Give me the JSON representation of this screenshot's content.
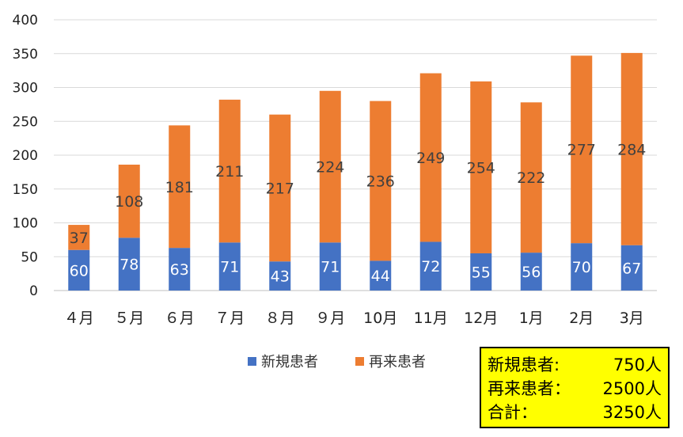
{
  "chart_data": {
    "type": "bar",
    "stacked": true,
    "categories": [
      "４月",
      "５月",
      "６月",
      "７月",
      "８月",
      "９月",
      "10月",
      "11月",
      "12月",
      "1月",
      "2月",
      "3月"
    ],
    "series": [
      {
        "name": "新規患者",
        "color": "#4472c4",
        "values": [
          60,
          78,
          63,
          71,
          43,
          71,
          44,
          72,
          55,
          56,
          70,
          67
        ]
      },
      {
        "name": "再来患者",
        "color": "#ed7d31",
        "values": [
          37,
          108,
          181,
          211,
          217,
          224,
          236,
          249,
          254,
          222,
          277,
          284
        ]
      }
    ],
    "ylim": [
      0,
      400
    ],
    "yticks": [
      0,
      50,
      100,
      150,
      200,
      250,
      300,
      350,
      400
    ],
    "grid": true,
    "legend_position": "bottom"
  },
  "summary": {
    "rows": [
      {
        "label": "新規患者:",
        "value": "750人"
      },
      {
        "label": "再来患者：",
        "value": "2500人"
      },
      {
        "label": "合計：",
        "value": "3250人"
      }
    ]
  }
}
